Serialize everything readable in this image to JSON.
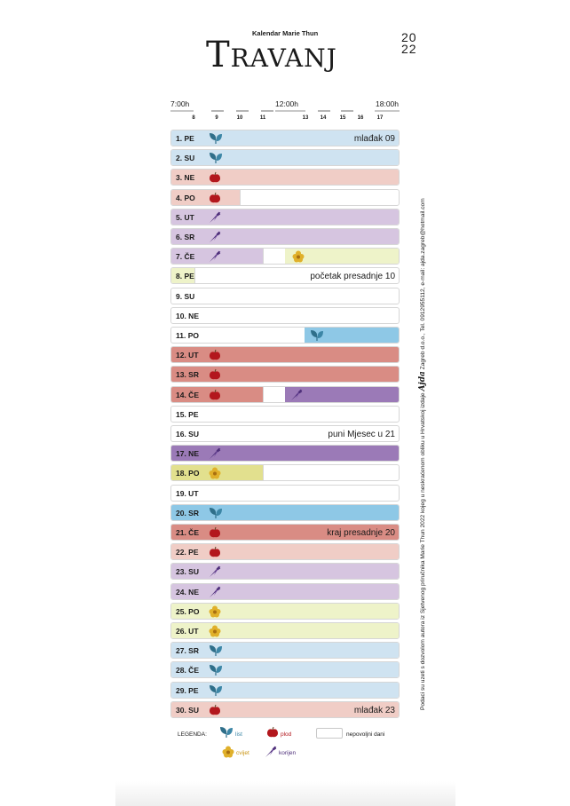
{
  "header": {
    "subtitle": "Kalendar Marie Thun",
    "month": "Travanj",
    "year_top": "20",
    "year_bottom": "22"
  },
  "timeline": {
    "start_label": "7:00h",
    "mid_label": "12:00h",
    "end_label": "18:00h",
    "hours": [
      "8",
      "9",
      "10",
      "11",
      "13",
      "14",
      "15",
      "16",
      "17"
    ]
  },
  "colors": {
    "list_light": "#cfe3f1",
    "list_strong": "#8ec8e6",
    "plod_light": "#f0cdc6",
    "plod_strong": "#d98c84",
    "korijen_light": "#d6c5e0",
    "korijen_strong": "#9b7ab7",
    "cvijet_light": "#eef3c9",
    "cvijet_strong": "#e2e08e"
  },
  "days": [
    {
      "label": "1. PE",
      "note": "mlađak 09",
      "icon": "leaf-icon"
    },
    {
      "label": "2. SU",
      "note": "",
      "icon": "leaf-icon"
    },
    {
      "label": "3. NE",
      "note": "",
      "icon": "apple-icon"
    },
    {
      "label": "4. PO",
      "note": "",
      "icon": "apple-icon"
    },
    {
      "label": "5. UT",
      "note": "",
      "icon": "carrot-icon"
    },
    {
      "label": "6. SR",
      "note": "",
      "icon": "carrot-icon"
    },
    {
      "label": "7. ČE",
      "note": "",
      "icon": "carrot-icon",
      "icon2": "flower-icon"
    },
    {
      "label": "8. PE",
      "note": "početak presadnje 10"
    },
    {
      "label": "9. SU",
      "note": ""
    },
    {
      "label": "10. NE",
      "note": ""
    },
    {
      "label": "11. PO",
      "note": "",
      "icon": "leaf-icon"
    },
    {
      "label": "12. UT",
      "note": "",
      "icon": "apple-icon"
    },
    {
      "label": "13. SR",
      "note": "",
      "icon": "apple-icon"
    },
    {
      "label": "14. ČE",
      "note": "",
      "icon": "apple-icon",
      "icon2": "carrot-icon"
    },
    {
      "label": "15. PE",
      "note": ""
    },
    {
      "label": "16. SU",
      "note": "puni Mjesec u 21"
    },
    {
      "label": "17. NE",
      "note": "",
      "icon": "carrot-icon"
    },
    {
      "label": "18. PO",
      "note": "",
      "icon": "flower-icon"
    },
    {
      "label": "19. UT",
      "note": ""
    },
    {
      "label": "20. SR",
      "note": "",
      "icon": "leaf-icon"
    },
    {
      "label": "21. ČE",
      "note": "kraj presadnje 20",
      "icon": "apple-icon"
    },
    {
      "label": "22. PE",
      "note": "",
      "icon": "apple-icon"
    },
    {
      "label": "23. SU",
      "note": "",
      "icon": "carrot-icon"
    },
    {
      "label": "24. NE",
      "note": "",
      "icon": "carrot-icon"
    },
    {
      "label": "25. PO",
      "note": "",
      "icon": "flower-icon"
    },
    {
      "label": "26. UT",
      "note": "",
      "icon": "flower-icon"
    },
    {
      "label": "27. SR",
      "note": "",
      "icon": "leaf-icon"
    },
    {
      "label": "28. ČE",
      "note": "",
      "icon": "leaf-icon"
    },
    {
      "label": "29. PE",
      "note": "",
      "icon": "leaf-icon"
    },
    {
      "label": "30. SU",
      "note": "mlađak 23",
      "icon": "apple-icon"
    }
  ],
  "legend": {
    "title": "LEGENDA:",
    "list": "list",
    "plod": "plod",
    "nepovoljni": "nepovoljni dani",
    "cvijet": "cvijet",
    "korijen": "korijen"
  },
  "side_text_a": "Podaci su uzeti s dozvolom autora iz Sjetvenog priručnika Marie Thun 2022 kojeg u neskraćenom obliku u Hrvatskoj izdaje",
  "side_brand": "Ajda",
  "side_text_b": "Zagreb d.o.o., Tel. 0912955112, e-mail: ajda.zagreb@hotmail.com"
}
